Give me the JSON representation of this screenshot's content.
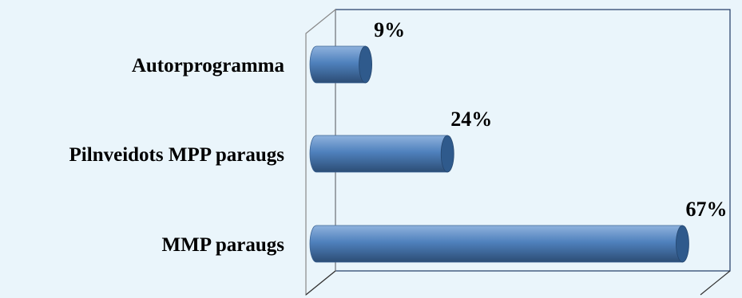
{
  "chart_data": {
    "type": "bar",
    "orientation": "horizontal",
    "three_d": true,
    "categories": [
      "Autorprogramma",
      "Pilnveidots MPP paraugs",
      "MMP paraugs"
    ],
    "values": [
      9,
      24,
      67
    ],
    "data_labels": [
      "9%",
      "24%",
      "67%"
    ],
    "xlim": [
      0,
      70
    ],
    "grid": false,
    "legend": "none",
    "colors": {
      "bar_light": "#8fb2dd",
      "bar_mid": "#4f81bd",
      "bar_dark": "#2c4d75",
      "frame": "#1f3864",
      "background": "#eaf5fb"
    }
  }
}
